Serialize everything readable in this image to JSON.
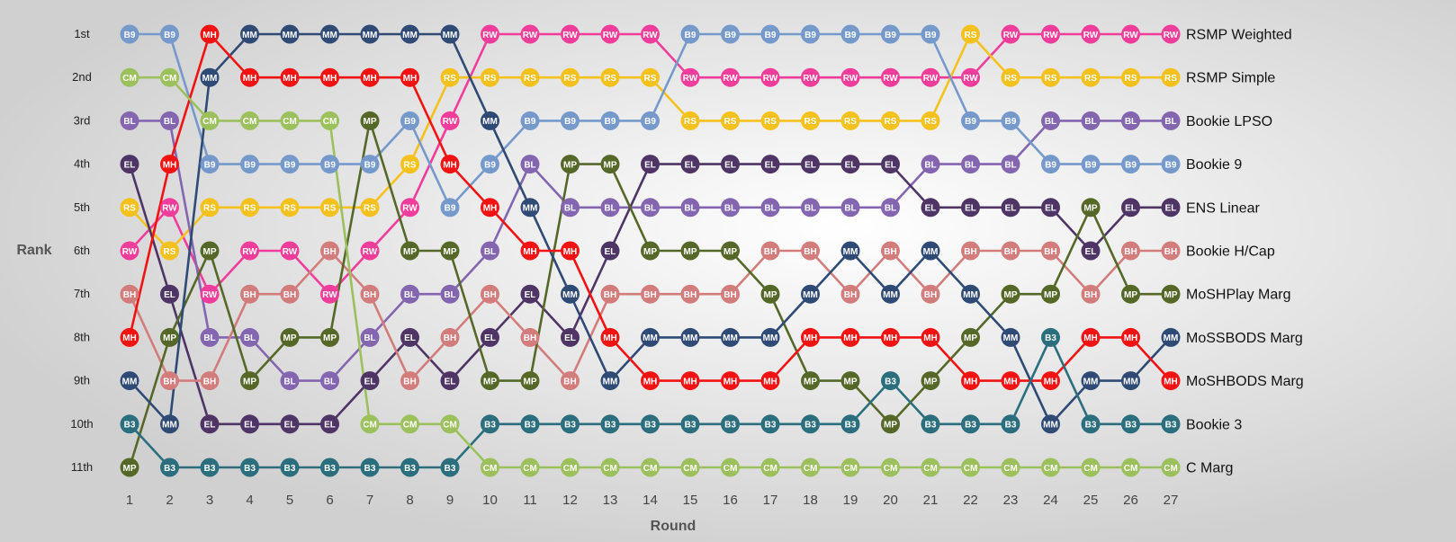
{
  "chart_data": {
    "type": "line",
    "xlabel": "Round",
    "ylabel": "Rank",
    "rank_labels": [
      "1st",
      "2nd",
      "3rd",
      "4th",
      "5th",
      "6th",
      "7th",
      "8th",
      "9th",
      "10th",
      "11th"
    ],
    "x": [
      1,
      2,
      3,
      4,
      5,
      6,
      7,
      8,
      9,
      10,
      11,
      12,
      13,
      14,
      15,
      16,
      17,
      18,
      19,
      20,
      21,
      22,
      23,
      24,
      25,
      26,
      27
    ],
    "series": [
      {
        "name": "RSMP Weighted",
        "abbr": "RW",
        "color": "#f03c9a",
        "values": [
          6,
          5,
          7,
          6,
          6,
          7,
          6,
          5,
          3,
          1,
          1,
          1,
          1,
          1,
          2,
          2,
          2,
          2,
          2,
          2,
          2,
          2,
          1,
          1,
          1,
          1,
          1
        ]
      },
      {
        "name": "RSMP Simple",
        "abbr": "RS",
        "color": "#f5c11d",
        "values": [
          5,
          6,
          5,
          5,
          5,
          5,
          5,
          4,
          2,
          2,
          2,
          2,
          2,
          2,
          3,
          3,
          3,
          3,
          3,
          3,
          3,
          1,
          2,
          2,
          2,
          2,
          2
        ]
      },
      {
        "name": "Bookie LPSO",
        "abbr": "BL",
        "color": "#8465b0",
        "values": [
          3,
          3,
          8,
          8,
          9,
          9,
          8,
          7,
          7,
          6,
          4,
          5,
          5,
          5,
          5,
          5,
          5,
          5,
          5,
          5,
          4,
          4,
          4,
          3,
          3,
          3,
          3
        ]
      },
      {
        "name": "Bookie 9",
        "abbr": "B9",
        "color": "#7699cc",
        "values": [
          1,
          1,
          4,
          4,
          4,
          4,
          4,
          3,
          5,
          4,
          3,
          3,
          3,
          3,
          1,
          1,
          1,
          1,
          1,
          1,
          1,
          3,
          3,
          4,
          4,
          4,
          4
        ]
      },
      {
        "name": "ENS Linear",
        "abbr": "EL",
        "color": "#4f3566",
        "values": [
          4,
          7,
          10,
          10,
          10,
          10,
          9,
          8,
          9,
          8,
          7,
          8,
          6,
          4,
          4,
          4,
          4,
          4,
          4,
          4,
          5,
          5,
          5,
          5,
          6,
          5,
          5
        ]
      },
      {
        "name": "Bookie H/Cap",
        "abbr": "BH",
        "color": "#d37c7c",
        "values": [
          7,
          9,
          9,
          7,
          7,
          6,
          7,
          9,
          8,
          7,
          8,
          9,
          7,
          7,
          7,
          7,
          6,
          6,
          7,
          6,
          7,
          6,
          6,
          6,
          7,
          6,
          6
        ]
      },
      {
        "name": "MoSHPlay Marg",
        "abbr": "MP",
        "color": "#556828",
        "values": [
          11,
          8,
          6,
          9,
          8,
          8,
          3,
          6,
          6,
          9,
          9,
          4,
          4,
          6,
          6,
          6,
          7,
          9,
          9,
          10,
          9,
          8,
          7,
          7,
          5,
          7,
          7
        ]
      },
      {
        "name": "MoSSBODS Marg",
        "abbr": "MM",
        "color": "#2e4a75",
        "values": [
          9,
          10,
          2,
          1,
          1,
          1,
          1,
          1,
          1,
          3,
          5,
          7,
          9,
          8,
          8,
          8,
          8,
          7,
          6,
          7,
          6,
          7,
          8,
          10,
          9,
          9,
          8
        ]
      },
      {
        "name": "MoSHBODS Marg",
        "abbr": "MH",
        "color": "#f21212",
        "values": [
          8,
          4,
          1,
          2,
          2,
          2,
          2,
          2,
          4,
          5,
          6,
          6,
          8,
          9,
          9,
          9,
          9,
          8,
          8,
          8,
          8,
          9,
          9,
          9,
          8,
          8,
          9
        ]
      },
      {
        "name": "Bookie 3",
        "abbr": "B3",
        "color": "#2b6e7e",
        "values": [
          10,
          11,
          11,
          11,
          11,
          11,
          11,
          11,
          11,
          10,
          10,
          10,
          10,
          10,
          10,
          10,
          10,
          10,
          10,
          9,
          10,
          10,
          10,
          8,
          10,
          10,
          10
        ]
      },
      {
        "name": "C Marg",
        "abbr": "CM",
        "color": "#9cc15c",
        "values": [
          2,
          2,
          3,
          3,
          3,
          3,
          10,
          10,
          10,
          11,
          11,
          11,
          11,
          11,
          11,
          11,
          11,
          11,
          11,
          11,
          11,
          11,
          11,
          11,
          11,
          11,
          11
        ]
      }
    ]
  }
}
